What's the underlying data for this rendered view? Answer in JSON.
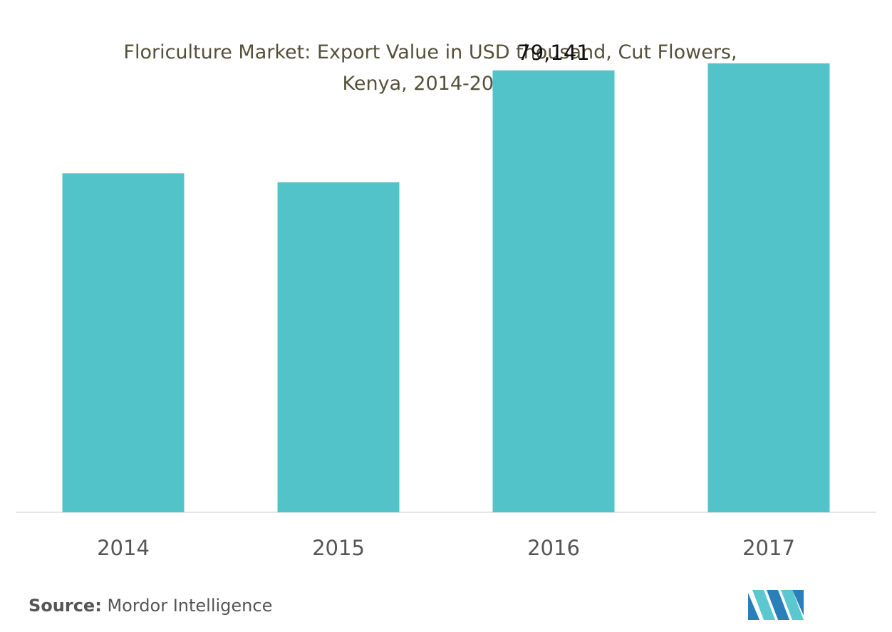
{
  "chart_data": {
    "type": "bar",
    "title_line1": "Floriculture Market: Export Value in USD thousand, Cut Flowers,",
    "title_line2": "Kenya, 2014-2017",
    "categories": [
      "2014",
      "2015",
      "2016",
      "2017"
    ],
    "values": [
      60700,
      59100,
      79141,
      80400
    ],
    "data_labels": [
      "",
      "",
      "79,141",
      ""
    ],
    "ylim": [
      0,
      86000
    ],
    "grid": false,
    "bar_color": "#52c3c9",
    "baseline_color": "#dddddd"
  },
  "footer": {
    "source_label": "Source:",
    "source_value": "Mordor Intelligence"
  },
  "logo": {
    "icon": "mordor-intelligence-logo",
    "colors": [
      "#2b7fb8",
      "#5bc8d0"
    ]
  }
}
